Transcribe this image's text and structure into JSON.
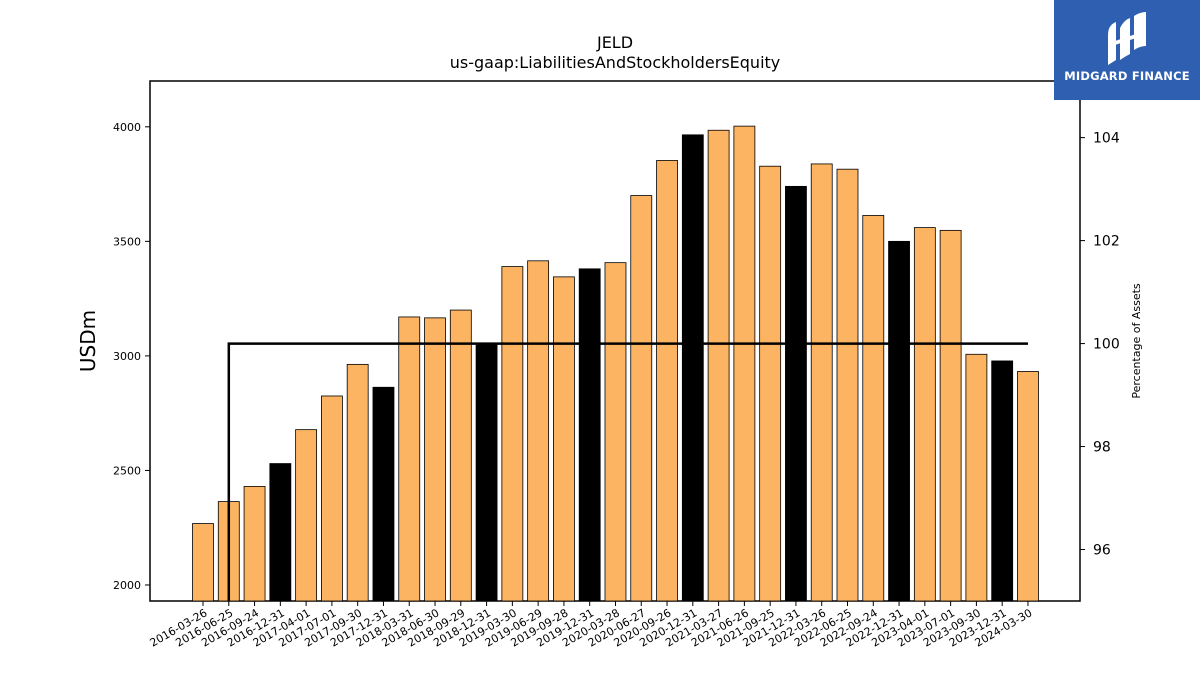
{
  "chart_data": {
    "type": "bar",
    "title": "JELD",
    "subtitle": "us-gaap:LiabilitiesAndStockholdersEquity",
    "ylabel": "USDm",
    "y2label": "Percentage of Assets",
    "ylim": [
      1930,
      4200
    ],
    "y2lim": [
      95,
      105.1
    ],
    "yticks": [
      2000,
      2500,
      3000,
      3500,
      4000
    ],
    "y2ticks": [
      96,
      98,
      100,
      102,
      104
    ],
    "categories": [
      "2016-03-26",
      "2016-06-25",
      "2016-09-24",
      "2016-12-31",
      "2017-04-01",
      "2017-07-01",
      "2017-09-30",
      "2017-12-31",
      "2018-03-31",
      "2018-06-30",
      "2018-09-29",
      "2018-12-31",
      "2019-03-30",
      "2019-06-29",
      "2019-09-28",
      "2019-12-31",
      "2020-03-28",
      "2020-06-27",
      "2020-09-26",
      "2020-12-31",
      "2021-03-27",
      "2021-06-26",
      "2021-09-25",
      "2021-12-31",
      "2022-03-26",
      "2022-06-25",
      "2022-09-24",
      "2022-12-31",
      "2023-04-01",
      "2023-07-01",
      "2023-09-30",
      "2023-12-31",
      "2024-03-30"
    ],
    "values": [
      2268,
      2364,
      2430,
      2530,
      2678,
      2825,
      2963,
      2863,
      3170,
      3166,
      3200,
      3052,
      3390,
      3415,
      3345,
      3380,
      3407,
      3700,
      3853,
      3965,
      3985,
      4003,
      3828,
      3740,
      3838,
      3815,
      3613,
      3500,
      3560,
      3548,
      3007,
      2978,
      2932
    ],
    "highlight_categories": [
      "2016-12-31",
      "2017-12-31",
      "2018-12-31",
      "2019-12-31",
      "2020-12-31",
      "2021-12-31",
      "2022-12-31",
      "2023-12-31"
    ],
    "colors": {
      "bar": "#fdb462",
      "highlight": "#000000",
      "edge": "#000000",
      "line": "#000000"
    },
    "line_series": {
      "x_start": "2016-06-25",
      "x_end": "2024-03-30",
      "value": 100
    }
  },
  "logo": {
    "text": "MIDGARD FINANCE",
    "color": "#2f5fb0"
  }
}
